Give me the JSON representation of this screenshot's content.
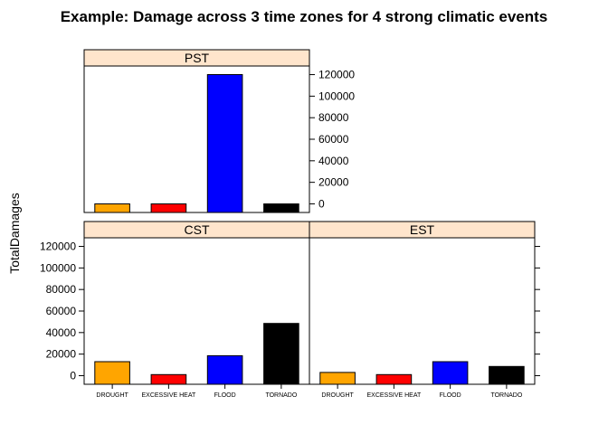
{
  "chart_data": {
    "type": "bar",
    "title": "Example: Damage across 3 time zones for 4 strong climatic events",
    "ylabel": "TotalDamages",
    "xlabel": "",
    "categories": [
      "DROUGHT",
      "EXCESSIVE HEAT",
      "FLOOD",
      "TORNADO"
    ],
    "bar_colors": [
      "#FFA500",
      "#FF0000",
      "#0000FF",
      "#000000"
    ],
    "strip_color": "#FFE5CC",
    "ylim": [
      -8000,
      128000
    ],
    "yticks": [
      0,
      20000,
      40000,
      60000,
      80000,
      100000,
      120000
    ],
    "yticklabels": [
      "0",
      "20000",
      "40000",
      "60000",
      "80000",
      "100000",
      "120000"
    ],
    "baseline": -8000,
    "panels": [
      {
        "name": "PST",
        "values": [
          0,
          0,
          120000,
          0
        ]
      },
      {
        "name": "CST",
        "values": [
          13000,
          1000,
          18500,
          48500
        ]
      },
      {
        "name": "EST",
        "values": [
          3000,
          1000,
          13000,
          8500
        ]
      }
    ],
    "grid": false,
    "legend": "none"
  }
}
